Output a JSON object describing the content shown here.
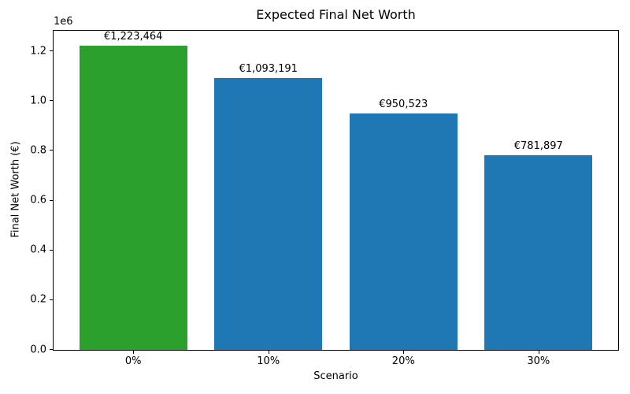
{
  "chart_data": {
    "type": "bar",
    "title": "Expected Final Net Worth",
    "xlabel": "Scenario",
    "ylabel": "Final Net Worth (€)",
    "y_offset_text": "1e6",
    "categories": [
      "0%",
      "10%",
      "20%",
      "30%"
    ],
    "values": [
      1223464,
      1093191,
      950523,
      781897
    ],
    "bar_labels": [
      "€1,223,464",
      "€1,093,191",
      "€950,523",
      "€781,897"
    ],
    "bar_colors": [
      "#2ca02c",
      "#1f77b4",
      "#1f77b4",
      "#1f77b4"
    ],
    "yticks": [
      0,
      200000,
      400000,
      600000,
      800000,
      1000000,
      1200000
    ],
    "ytick_labels": [
      "0.0",
      "0.2",
      "0.4",
      "0.6",
      "0.8",
      "1.0",
      "1.2"
    ],
    "ylim": [
      0,
      1283000
    ],
    "xlim": [
      -0.59,
      3.59
    ],
    "bar_width": 0.8,
    "grid": false,
    "legend": null,
    "background": "#ffffff",
    "axis_color": "#000000"
  }
}
